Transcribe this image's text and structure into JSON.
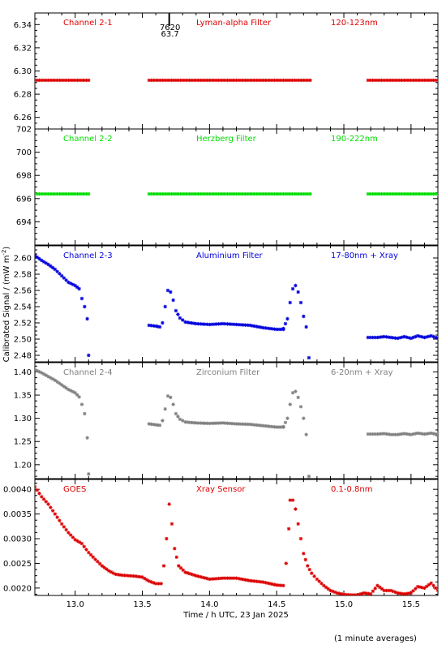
{
  "chart_data": {
    "type": "scatter",
    "ylabel": "Calibrated Signal / (mW m",
    "ylabel_sup": "-2",
    "ylabel_end": ")",
    "xlabel": "Time / h UTC, 23 Jan 2025",
    "note": "(1 minute averages)",
    "xlim": [
      12.7,
      15.7
    ],
    "xticks": [
      13.0,
      13.5,
      14.0,
      14.5,
      15.0,
      15.5
    ],
    "xtick_labels": [
      "13.0",
      "13.5",
      "14.0",
      "14.5",
      "15.0",
      "15.5"
    ],
    "marker": {
      "value": 13.7,
      "label_top": "7620",
      "label_bottom": "63.7"
    },
    "panels": [
      {
        "labels": [
          "Channel 2-1",
          "Lyman-alpha Filter",
          "120-123nm"
        ],
        "color": "#dd0000",
        "ylim": [
          6.25,
          6.35
        ],
        "yticks": [
          6.26,
          6.28,
          6.3,
          6.32,
          6.34
        ],
        "ytick_labels": [
          "6.26",
          "6.28",
          "6.30",
          "6.32",
          "6.34"
        ],
        "segments": [
          {
            "x0": 12.7,
            "x1": 13.1,
            "kind": "const",
            "y": 6.292
          },
          {
            "x0": 13.55,
            "x1": 14.75,
            "kind": "const",
            "y": 6.292
          },
          {
            "x0": 15.18,
            "x1": 15.7,
            "kind": "const",
            "y": 6.292
          }
        ]
      },
      {
        "labels": [
          "Channel 2-2",
          "Herzberg Filter",
          "190-222nm"
        ],
        "color": "#00dd00",
        "ylim": [
          692,
          702
        ],
        "yticks": [
          694,
          696,
          698,
          700,
          702
        ],
        "ytick_labels": [
          "694",
          "696",
          "698",
          "700",
          "702"
        ],
        "segments": [
          {
            "x0": 12.7,
            "x1": 13.1,
            "kind": "const",
            "y": 696.4
          },
          {
            "x0": 13.55,
            "x1": 14.75,
            "kind": "const",
            "y": 696.4
          },
          {
            "x0": 15.18,
            "x1": 15.7,
            "kind": "const",
            "y": 696.4
          }
        ]
      },
      {
        "labels": [
          "Channel 2-3",
          "Aluminium Filter",
          "17-80nm + Xray"
        ],
        "color": "#0000dd",
        "ylim": [
          2.472,
          2.615
        ],
        "yticks": [
          2.48,
          2.5,
          2.52,
          2.54,
          2.56,
          2.58,
          2.6
        ],
        "ytick_labels": [
          "2.48",
          "2.50",
          "2.52",
          "2.54",
          "2.56",
          "2.58",
          "2.60"
        ],
        "series": [
          {
            "x": [
              12.7,
              12.75,
              12.8,
              12.85,
              12.9,
              12.95,
              13.0,
              13.03,
              13.05,
              13.07,
              13.09,
              13.1
            ],
            "y": [
              2.603,
              2.597,
              2.592,
              2.586,
              2.578,
              2.57,
              2.566,
              2.562,
              2.55,
              2.54,
              2.525,
              2.48
            ]
          },
          {
            "x": [
              13.55,
              13.6,
              13.63,
              13.65,
              13.67,
              13.69,
              13.71,
              13.73,
              13.75,
              13.78,
              13.82,
              13.9,
              14.0,
              14.1,
              14.2,
              14.3,
              14.4,
              14.5,
              14.55
            ],
            "y": [
              2.517,
              2.516,
              2.515,
              2.52,
              2.54,
              2.56,
              2.558,
              2.548,
              2.535,
              2.526,
              2.521,
              2.519,
              2.518,
              2.519,
              2.518,
              2.517,
              2.514,
              2.512,
              2.512
            ]
          },
          {
            "x": [
              14.55,
              14.58,
              14.6,
              14.62,
              14.64,
              14.66,
              14.68,
              14.7,
              14.72,
              14.74
            ],
            "y": [
              2.513,
              2.525,
              2.545,
              2.562,
              2.566,
              2.558,
              2.545,
              2.528,
              2.515,
              2.477
            ]
          },
          {
            "x": [
              15.18,
              15.25,
              15.3,
              15.35,
              15.4,
              15.45,
              15.5,
              15.55,
              15.6,
              15.65,
              15.7
            ],
            "y": [
              2.502,
              2.502,
              2.503,
              2.502,
              2.501,
              2.503,
              2.501,
              2.504,
              2.502,
              2.504,
              2.501
            ]
          }
        ]
      },
      {
        "labels": [
          "Channel 2-4",
          "Zirconium Filter",
          "6-20nm + Xray"
        ],
        "color": "#808080",
        "ylim": [
          1.17,
          1.42
        ],
        "yticks": [
          1.2,
          1.25,
          1.3,
          1.35,
          1.4
        ],
        "ytick_labels": [
          "1.20",
          "1.25",
          "1.30",
          "1.35",
          "1.40"
        ],
        "series": [
          {
            "x": [
              12.7,
              12.75,
              12.8,
              12.85,
              12.9,
              12.95,
              13.0,
              13.03,
              13.05,
              13.07,
              13.09,
              13.1
            ],
            "y": [
              1.405,
              1.398,
              1.39,
              1.382,
              1.372,
              1.362,
              1.355,
              1.346,
              1.33,
              1.31,
              1.258,
              1.18
            ]
          },
          {
            "x": [
              13.55,
              13.6,
              13.63,
              13.65,
              13.67,
              13.69,
              13.71,
              13.73,
              13.75,
              13.78,
              13.82,
              13.9,
              14.0,
              14.1,
              14.2,
              14.3,
              14.4,
              14.5,
              14.55
            ],
            "y": [
              1.288,
              1.286,
              1.285,
              1.295,
              1.32,
              1.348,
              1.345,
              1.33,
              1.31,
              1.298,
              1.292,
              1.29,
              1.289,
              1.29,
              1.288,
              1.287,
              1.284,
              1.281,
              1.281
            ]
          },
          {
            "x": [
              14.55,
              14.58,
              14.6,
              14.62,
              14.64,
              14.66,
              14.68,
              14.7,
              14.72,
              14.74
            ],
            "y": [
              1.282,
              1.3,
              1.33,
              1.355,
              1.358,
              1.345,
              1.325,
              1.3,
              1.265,
              1.175
            ]
          },
          {
            "x": [
              15.18,
              15.25,
              15.3,
              15.35,
              15.4,
              15.45,
              15.5,
              15.55,
              15.6,
              15.65,
              15.7
            ],
            "y": [
              1.266,
              1.266,
              1.267,
              1.265,
              1.265,
              1.267,
              1.265,
              1.268,
              1.266,
              1.268,
              1.265
            ]
          }
        ]
      },
      {
        "labels": [
          "GOES",
          "Xray Sensor",
          "0.1-0.8nm"
        ],
        "color": "#dd0000",
        "ylim": [
          0.00185,
          0.0042
        ],
        "yticks": [
          0.002,
          0.0025,
          0.003,
          0.0035,
          0.004
        ],
        "ytick_labels": [
          "0.0020",
          "0.0025",
          "0.0030",
          "0.0035",
          "0.0040"
        ],
        "series": [
          {
            "x": [
              12.7,
              12.75,
              12.8,
              12.85,
              12.9,
              12.95,
              13.0,
              13.05,
              13.1,
              13.15,
              13.2,
              13.25,
              13.3,
              13.35,
              13.4,
              13.45,
              13.5,
              13.55,
              13.6,
              13.64
            ],
            "y": [
              0.00405,
              0.00385,
              0.0037,
              0.0035,
              0.0033,
              0.00312,
              0.00298,
              0.0029,
              0.00272,
              0.00258,
              0.00245,
              0.00235,
              0.00228,
              0.00226,
              0.00225,
              0.00224,
              0.00222,
              0.00214,
              0.00209,
              0.00209
            ]
          },
          {
            "x": [
              13.66,
              13.68,
              13.7,
              13.72,
              13.74,
              13.77,
              13.82,
              13.9,
              14.0,
              14.1,
              14.2,
              14.3,
              14.4,
              14.5,
              14.55
            ],
            "y": [
              0.00245,
              0.003,
              0.0037,
              0.0033,
              0.0028,
              0.00245,
              0.00232,
              0.00225,
              0.00218,
              0.0022,
              0.0022,
              0.00215,
              0.00212,
              0.00206,
              0.00205
            ]
          },
          {
            "x": [
              14.57,
              14.59,
              14.6,
              14.62,
              14.64,
              14.66,
              14.68,
              14.7,
              14.73,
              14.76,
              14.8,
              14.85,
              14.9,
              14.95,
              15.0,
              15.05,
              15.1,
              15.15,
              15.2,
              15.25,
              15.3,
              15.35,
              15.4,
              15.45,
              15.5,
              15.55,
              15.6,
              15.65,
              15.7
            ],
            "y": [
              0.0025,
              0.0032,
              0.00378,
              0.00378,
              0.0036,
              0.0033,
              0.003,
              0.0027,
              0.00245,
              0.0023,
              0.00218,
              0.00205,
              0.00195,
              0.0019,
              0.00187,
              0.00186,
              0.00186,
              0.0019,
              0.00188,
              0.00205,
              0.00195,
              0.00195,
              0.0019,
              0.00188,
              0.0019,
              0.00203,
              0.002,
              0.0021,
              0.00195
            ]
          }
        ]
      }
    ]
  }
}
